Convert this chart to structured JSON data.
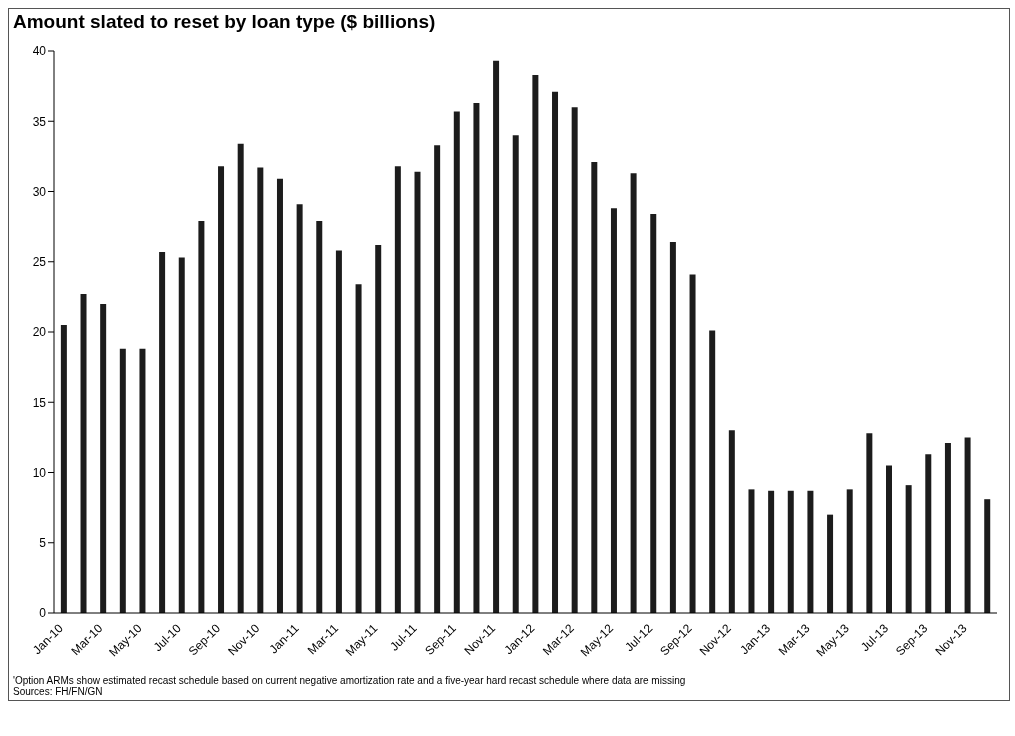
{
  "chart_data": {
    "type": "bar",
    "title": "Amount slated to reset by loan type ($ billions)",
    "categories": [
      "Jan-10",
      null,
      "Mar-10",
      null,
      "May-10",
      null,
      "Jul-10",
      null,
      "Sep-10",
      null,
      "Nov-10",
      null,
      "Jan-11",
      null,
      "Mar-11",
      null,
      "May-11",
      null,
      "Jul-11",
      null,
      "Sep-11",
      null,
      "Nov-11",
      null,
      "Jan-12",
      null,
      "Mar-12",
      null,
      "May-12",
      null,
      "Jul-12",
      null,
      "Sep-12",
      null,
      "Nov-12",
      null,
      "Jan-13",
      null,
      "Mar-13",
      null,
      "May-13",
      null,
      "Jul-13",
      null,
      "Sep-13",
      null,
      "Nov-13",
      null
    ],
    "series": [
      {
        "color": "#1c1c1c",
        "values": [
          20.5,
          22.7,
          22,
          18.8,
          18.8,
          25.7,
          25.3,
          27.9,
          31.8,
          33.4,
          31.7,
          30.9,
          29.1,
          27.9,
          25.8,
          23.4,
          26.2,
          31.8,
          31.4,
          33.3,
          35.7,
          36.3,
          39.3,
          34,
          38.3,
          37.1,
          36,
          32.1,
          28.8,
          31.3,
          28.4,
          26.4,
          24.1,
          20.1,
          13,
          8.8,
          8.7,
          8.7,
          8.7,
          7,
          8.8,
          12.8,
          10.5,
          9.1,
          11.3,
          12.1,
          12.5,
          8.1
        ]
      }
    ],
    "ylim": [
      0,
      40
    ],
    "yticks": [
      0,
      5,
      10,
      15,
      20,
      25,
      30,
      35,
      40
    ],
    "grid": false,
    "legend": false,
    "annotations": [
      "'Option ARMs show estimated recast schedule based on current negative amortization rate and a five-year hard recast schedule where data are missing",
      "Sources: FH/FN/GN"
    ]
  }
}
